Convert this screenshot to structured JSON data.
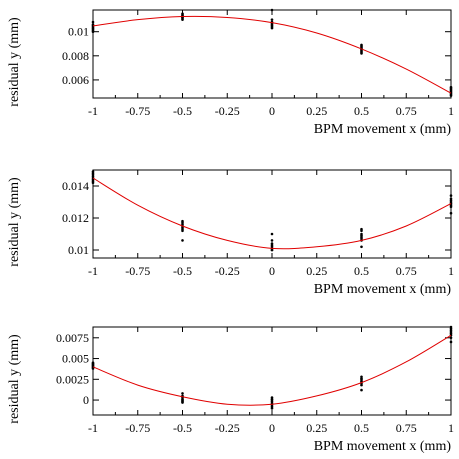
{
  "colors": {
    "frame": "#000000",
    "data_point": "#000000",
    "fit_curve": "#e00000"
  },
  "chart_data": [
    {
      "type": "scatter",
      "title": "",
      "xlabel": "BPM movement x (mm)",
      "ylabel": "residual y (mm)",
      "xlim": [
        -1,
        1
      ],
      "ylim": [
        0.0045,
        0.0118
      ],
      "xticks": [
        -1,
        -0.75,
        -0.5,
        -0.25,
        0,
        0.25,
        0.5,
        0.75,
        1
      ],
      "xtick_labels": [
        "-1",
        "-0.75",
        "-0.5",
        "-0.25",
        "0",
        "0.25",
        "0.5",
        "0.75",
        "1"
      ],
      "yticks": [
        0.006,
        0.008,
        0.01
      ],
      "ytick_labels": [
        "0.006",
        "0.008",
        "0.01"
      ],
      "grid": false,
      "series": [
        {
          "kind": "points",
          "x": [
            -1,
            -1,
            -1,
            -1,
            -1,
            -1,
            -1,
            -1,
            -0.5,
            -0.5,
            -0.5,
            -0.5,
            -0.5,
            -0.5,
            -0.5,
            -0.5,
            0,
            0,
            0,
            0,
            0,
            0,
            0,
            0,
            0.5,
            0.5,
            0.5,
            0.5,
            0.5,
            0.5,
            0.5,
            0.5,
            1,
            1,
            1,
            1,
            1,
            1,
            1,
            1
          ],
          "y": [
            0.0108,
            0.0106,
            0.0105,
            0.0104,
            0.0103,
            0.0102,
            0.0101,
            0.01,
            0.0115,
            0.0114,
            0.0113,
            0.0113,
            0.0112,
            0.0112,
            0.0111,
            0.011,
            0.0118,
            0.011,
            0.0108,
            0.0107,
            0.0106,
            0.0105,
            0.0104,
            0.0103,
            0.0089,
            0.0088,
            0.0087,
            0.0086,
            0.0085,
            0.0084,
            0.0083,
            0.0082,
            0.0054,
            0.0053,
            0.0052,
            0.0051,
            0.005,
            0.0049,
            0.0048,
            0.0047
          ]
        },
        {
          "kind": "fit",
          "x": [
            -1,
            -0.75,
            -0.5,
            -0.25,
            0,
            0.25,
            0.5,
            0.75,
            1
          ],
          "y": [
            0.01048,
            0.011,
            0.01126,
            0.01118,
            0.01075,
            0.00989,
            0.00857,
            0.0069,
            0.0049
          ]
        }
      ]
    },
    {
      "type": "scatter",
      "title": "",
      "xlabel": "BPM movement x (mm)",
      "ylabel": "residual y (mm)",
      "xlim": [
        -1,
        1
      ],
      "ylim": [
        0.0095,
        0.015
      ],
      "xticks": [
        -1,
        -0.75,
        -0.5,
        -0.25,
        0,
        0.25,
        0.5,
        0.75,
        1
      ],
      "xtick_labels": [
        "-1",
        "-0.75",
        "-0.5",
        "-0.25",
        "0",
        "0.25",
        "0.5",
        "0.75",
        "1"
      ],
      "yticks": [
        0.01,
        0.012,
        0.014
      ],
      "ytick_labels": [
        "0.01",
        "0.012",
        "0.014"
      ],
      "grid": false,
      "series": [
        {
          "kind": "points",
          "x": [
            -1,
            -1,
            -1,
            -1,
            -1,
            -1,
            -1,
            -1,
            -0.5,
            -0.5,
            -0.5,
            -0.5,
            -0.5,
            -0.5,
            -0.5,
            -0.5,
            0,
            0,
            0,
            0,
            0,
            0,
            0,
            0,
            0.5,
            0.5,
            0.5,
            0.5,
            0.5,
            0.5,
            0.5,
            0.5,
            1,
            1,
            1,
            1,
            1,
            1,
            1,
            1
          ],
          "y": [
            0.0149,
            0.0148,
            0.0147,
            0.0146,
            0.0145,
            0.0144,
            0.0143,
            0.0142,
            0.0118,
            0.0117,
            0.0116,
            0.0115,
            0.0114,
            0.0113,
            0.0112,
            0.0106,
            0.011,
            0.0106,
            0.0104,
            0.0103,
            0.0102,
            0.0101,
            0.01,
            0.01,
            0.0113,
            0.0112,
            0.011,
            0.0109,
            0.0108,
            0.0107,
            0.0106,
            0.0102,
            0.0134,
            0.0132,
            0.0131,
            0.013,
            0.0129,
            0.0128,
            0.0127,
            0.0123
          ]
        },
        {
          "kind": "fit",
          "x": [
            -1,
            -0.75,
            -0.5,
            -0.25,
            0,
            0.25,
            0.5,
            0.75,
            1
          ],
          "y": [
            0.0145,
            0.0128,
            0.0115,
            0.0106,
            0.0101,
            0.0102,
            0.0106,
            0.0115,
            0.0129
          ]
        }
      ]
    },
    {
      "type": "scatter",
      "title": "",
      "xlabel": "BPM movement x (mm)",
      "ylabel": "residual y (mm)",
      "xlim": [
        -1,
        1
      ],
      "ylim": [
        -0.0018,
        0.0088
      ],
      "xticks": [
        -1,
        -0.75,
        -0.5,
        -0.25,
        0,
        0.25,
        0.5,
        0.75,
        1
      ],
      "xtick_labels": [
        "-1",
        "-0.75",
        "-0.5",
        "-0.25",
        "0",
        "0.25",
        "0.5",
        "0.75",
        "1"
      ],
      "yticks": [
        0,
        0.0025,
        0.005,
        0.0075
      ],
      "ytick_labels": [
        "0",
        "0.0025",
        "0.005",
        "0.0075"
      ],
      "grid": false,
      "series": [
        {
          "kind": "points",
          "x": [
            -1,
            -1,
            -1,
            -1,
            -1,
            -1,
            -1,
            -1,
            -0.5,
            -0.5,
            -0.5,
            -0.5,
            -0.5,
            -0.5,
            -0.5,
            -0.5,
            0,
            0,
            0,
            0,
            0,
            0,
            0,
            0,
            0.5,
            0.5,
            0.5,
            0.5,
            0.5,
            0.5,
            0.5,
            0.5,
            1,
            1,
            1,
            1,
            1,
            1,
            1,
            1
          ],
          "y": [
            0.0045,
            0.0044,
            0.0043,
            0.0042,
            0.0041,
            0.004,
            0.0039,
            0.0038,
            0.0008,
            0.0005,
            0.0003,
            0.0001,
            0.0,
            -0.0001,
            -0.0002,
            -0.0003,
            0.0003,
            0.0001,
            0.0,
            -0.0002,
            -0.0004,
            -0.0006,
            -0.0008,
            -0.001,
            0.0028,
            0.0026,
            0.0025,
            0.0023,
            0.0022,
            0.002,
            0.0018,
            0.0012,
            0.0088,
            0.0086,
            0.0084,
            0.0082,
            0.008,
            0.0078,
            0.0075,
            0.007
          ]
        },
        {
          "kind": "fit",
          "x": [
            -1,
            -0.75,
            -0.5,
            -0.25,
            0,
            0.25,
            0.5,
            0.75,
            1
          ],
          "y": [
            0.004,
            0.0018,
            0.0004,
            -0.0005,
            -0.0005,
            0.0005,
            0.0021,
            0.0046,
            0.0078
          ]
        }
      ]
    }
  ]
}
